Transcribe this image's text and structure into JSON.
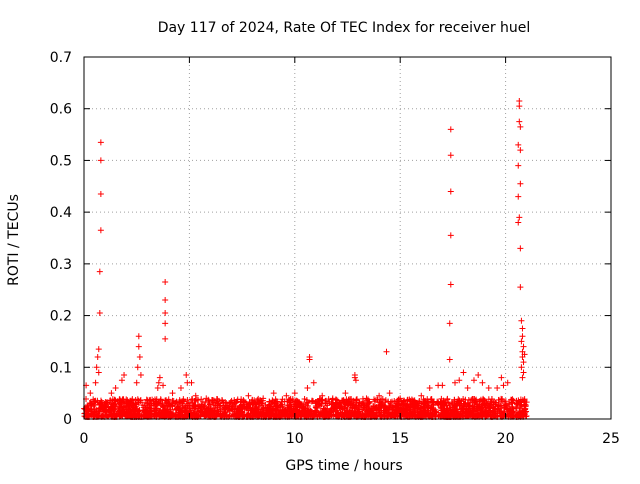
{
  "chart_data": {
    "type": "scatter",
    "title": "Day 117 of 2024, Rate Of TEC Index for receiver huel",
    "xlabel": "GPS time / hours",
    "ylabel": "ROTI / TECUs",
    "xlim": [
      0,
      25
    ],
    "ylim": [
      0,
      0.7
    ],
    "x_ticks": [
      "0",
      "5",
      "10",
      "15",
      "20",
      "25"
    ],
    "y_ticks": [
      "0",
      "0.1",
      "0.2",
      "0.3",
      "0.4",
      "0.5",
      "0.6",
      "0.7"
    ],
    "grid": true,
    "marker": "+",
    "color": "#ff0000",
    "series": [
      {
        "points": [
          [
            0.8,
            0.535
          ],
          [
            0.8,
            0.5
          ],
          [
            0.8,
            0.435
          ],
          [
            0.8,
            0.365
          ],
          [
            0.75,
            0.285
          ],
          [
            0.75,
            0.205
          ],
          [
            0.7,
            0.135
          ],
          [
            0.65,
            0.12
          ],
          [
            0.6,
            0.1
          ],
          [
            0.7,
            0.09
          ],
          [
            0.55,
            0.07
          ],
          [
            0.1,
            0.065
          ],
          [
            0.3,
            0.05
          ],
          [
            2.6,
            0.16
          ],
          [
            2.6,
            0.14
          ],
          [
            2.65,
            0.12
          ],
          [
            2.55,
            0.1
          ],
          [
            2.7,
            0.085
          ],
          [
            2.5,
            0.07
          ],
          [
            1.9,
            0.085
          ],
          [
            1.8,
            0.075
          ],
          [
            1.5,
            0.06
          ],
          [
            1.3,
            0.05
          ],
          [
            3.85,
            0.265
          ],
          [
            3.85,
            0.23
          ],
          [
            3.85,
            0.205
          ],
          [
            3.85,
            0.185
          ],
          [
            3.85,
            0.155
          ],
          [
            3.6,
            0.08
          ],
          [
            3.55,
            0.07
          ],
          [
            3.75,
            0.065
          ],
          [
            3.5,
            0.06
          ],
          [
            4.2,
            0.05
          ],
          [
            4.85,
            0.085
          ],
          [
            4.9,
            0.07
          ],
          [
            5.1,
            0.07
          ],
          [
            4.6,
            0.06
          ],
          [
            5.3,
            0.045
          ],
          [
            5.8,
            0.04
          ],
          [
            6.4,
            0.035
          ],
          [
            7.0,
            0.035
          ],
          [
            7.8,
            0.045
          ],
          [
            8.5,
            0.04
          ],
          [
            9.0,
            0.05
          ],
          [
            9.6,
            0.045
          ],
          [
            10.0,
            0.05
          ],
          [
            10.6,
            0.06
          ],
          [
            10.7,
            0.12
          ],
          [
            10.7,
            0.115
          ],
          [
            10.9,
            0.07
          ],
          [
            11.3,
            0.045
          ],
          [
            11.8,
            0.04
          ],
          [
            12.4,
            0.05
          ],
          [
            12.85,
            0.085
          ],
          [
            12.85,
            0.08
          ],
          [
            12.9,
            0.075
          ],
          [
            13.4,
            0.04
          ],
          [
            14.0,
            0.045
          ],
          [
            14.35,
            0.13
          ],
          [
            14.5,
            0.05
          ],
          [
            15.0,
            0.04
          ],
          [
            15.5,
            0.035
          ],
          [
            16.0,
            0.045
          ],
          [
            16.4,
            0.06
          ],
          [
            16.8,
            0.065
          ],
          [
            17.0,
            0.065
          ],
          [
            17.4,
            0.56
          ],
          [
            17.4,
            0.51
          ],
          [
            17.4,
            0.44
          ],
          [
            17.4,
            0.355
          ],
          [
            17.4,
            0.26
          ],
          [
            17.35,
            0.185
          ],
          [
            17.35,
            0.115
          ],
          [
            17.6,
            0.07
          ],
          [
            17.8,
            0.075
          ],
          [
            18.0,
            0.09
          ],
          [
            18.2,
            0.06
          ],
          [
            18.5,
            0.075
          ],
          [
            18.7,
            0.085
          ],
          [
            18.9,
            0.07
          ],
          [
            19.2,
            0.06
          ],
          [
            19.6,
            0.06
          ],
          [
            19.8,
            0.08
          ],
          [
            19.9,
            0.065
          ],
          [
            20.1,
            0.07
          ],
          [
            20.65,
            0.615
          ],
          [
            20.65,
            0.605
          ],
          [
            20.65,
            0.575
          ],
          [
            20.7,
            0.565
          ],
          [
            20.6,
            0.53
          ],
          [
            20.7,
            0.52
          ],
          [
            20.6,
            0.49
          ],
          [
            20.7,
            0.455
          ],
          [
            20.6,
            0.43
          ],
          [
            20.65,
            0.39
          ],
          [
            20.6,
            0.38
          ],
          [
            20.7,
            0.33
          ],
          [
            20.7,
            0.255
          ],
          [
            20.75,
            0.19
          ],
          [
            20.8,
            0.175
          ],
          [
            20.8,
            0.16
          ],
          [
            20.75,
            0.15
          ],
          [
            20.85,
            0.14
          ],
          [
            20.8,
            0.13
          ],
          [
            20.9,
            0.125
          ],
          [
            20.8,
            0.12
          ],
          [
            20.85,
            0.11
          ],
          [
            20.75,
            0.1
          ],
          [
            20.85,
            0.09
          ],
          [
            20.8,
            0.08
          ]
        ],
        "dense_band": {
          "x_range": [
            0,
            21
          ],
          "y_typical": [
            0.0,
            0.035
          ],
          "note_points": [
            [
              0.2,
              0.02
            ],
            [
              1.0,
              0.025
            ],
            [
              2.0,
              0.03
            ],
            [
              3.0,
              0.025
            ],
            [
              4.0,
              0.03
            ],
            [
              5.0,
              0.025
            ],
            [
              6.0,
              0.02
            ],
            [
              7.0,
              0.02
            ],
            [
              8.0,
              0.02
            ],
            [
              9.0,
              0.025
            ],
            [
              10.0,
              0.02
            ],
            [
              11.0,
              0.025
            ],
            [
              12.0,
              0.02
            ],
            [
              13.0,
              0.025
            ],
            [
              14.0,
              0.02
            ],
            [
              15.0,
              0.02
            ],
            [
              16.0,
              0.025
            ],
            [
              17.0,
              0.03
            ],
            [
              18.0,
              0.03
            ],
            [
              19.0,
              0.03
            ],
            [
              20.0,
              0.025
            ],
            [
              20.9,
              0.02
            ]
          ]
        }
      }
    ]
  }
}
